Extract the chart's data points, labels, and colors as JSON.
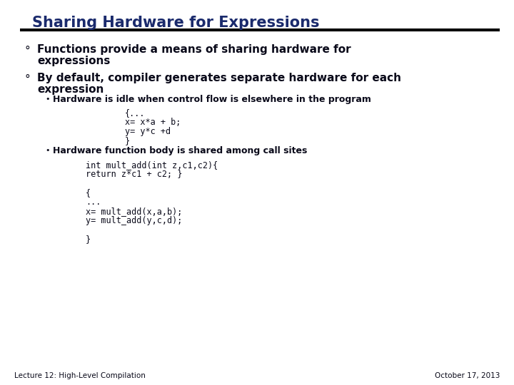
{
  "title": "Sharing Hardware for Expressions",
  "bg_color": "#ffffff",
  "title_color": "#1a2a6c",
  "rule_color": "#0a0a0a",
  "bullet1_line1": "Functions provide a means of sharing hardware for",
  "bullet1_line2": "expressions",
  "bullet2_line1": "By default, compiler generates separate hardware for each",
  "bullet2_line2": "expression",
  "sub_bullet1": "Hardware is idle when control flow is elsewhere in the program",
  "code1_lines": [
    "{...",
    "x= x*a + b;",
    "y= y*c +d",
    "}"
  ],
  "sub_bullet2": "Hardware function body is shared among call sites",
  "code2_lines": [
    "int mult_add(int z,c1,c2){",
    "return z*c1 + c2; }",
    "",
    "{",
    "...",
    "x= mult_add(x,a,b);",
    "y= mult_add(y,c,d);",
    "",
    "}"
  ],
  "footer_left": "Lecture 12: High-Level Compilation",
  "footer_right": "October 17, 2013",
  "title_fontsize": 15,
  "bullet_fontsize": 11,
  "sub_bullet_fontsize": 9,
  "code_fontsize": 8.5,
  "footer_fontsize": 7.5,
  "dark_color": "#0a0a1a",
  "navy_color": "#1a2360"
}
